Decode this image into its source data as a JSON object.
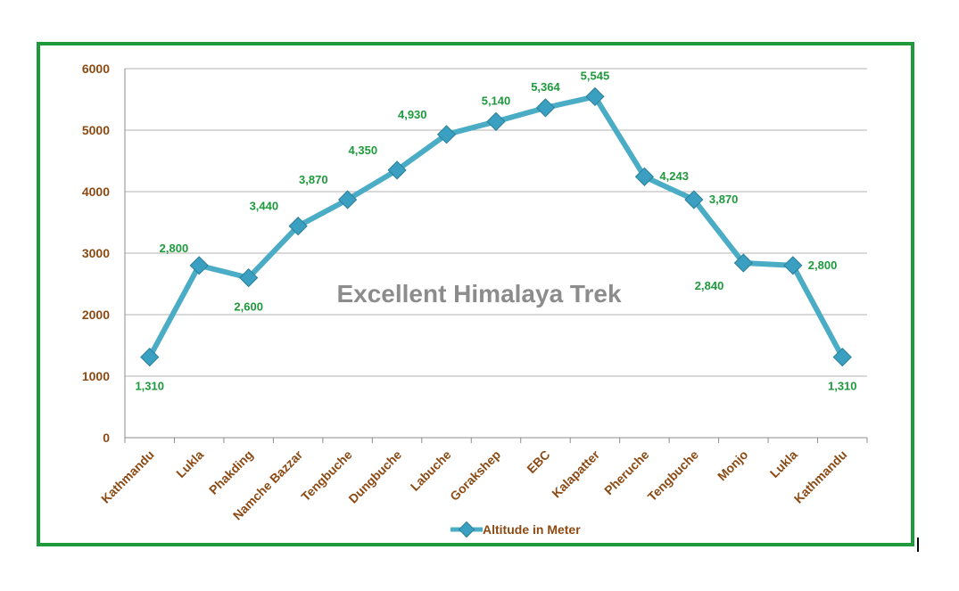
{
  "chart_data": {
    "type": "line",
    "title": "",
    "watermark": "Excellent Himalaya Trek",
    "xlabel": "",
    "ylabel": "",
    "categories": [
      "Kathmandu",
      "Lukla",
      "Phakding",
      "Namche Bazzar",
      "Tengbuche",
      "Dungbuche",
      "Labuche",
      "Gorakshep",
      "EBC",
      "Kalapatter",
      "Pheruche",
      "Tengbuche",
      "Monjo",
      "Lukla",
      "Kathmandu"
    ],
    "series": [
      {
        "name": "Altitude in Meter",
        "values": [
          1310,
          2800,
          2600,
          3440,
          3870,
          4350,
          4930,
          5140,
          5364,
          5545,
          4243,
          3870,
          2840,
          2800,
          1310
        ],
        "labels": [
          "1,310",
          "2,800",
          "2,600",
          "3,440",
          "3,870",
          "4,350",
          "4,930",
          "5,140",
          "5,364",
          "5,545",
          "4,243",
          "3,870",
          "2,840",
          "2,800",
          "1,310"
        ]
      }
    ],
    "yticks": [
      "0",
      "1000",
      "2000",
      "3000",
      "4000",
      "5000",
      "6000"
    ],
    "ylim": [
      0,
      6000
    ],
    "grid": true,
    "legend_position": "bottom",
    "colors": {
      "line": "#4bacc6",
      "marker": "#3a9fc0",
      "data_label": "#1e9a3c",
      "tick_label": "#8b4a13",
      "frame": "#1e9a3c",
      "watermark": "#8c8c8c"
    }
  }
}
